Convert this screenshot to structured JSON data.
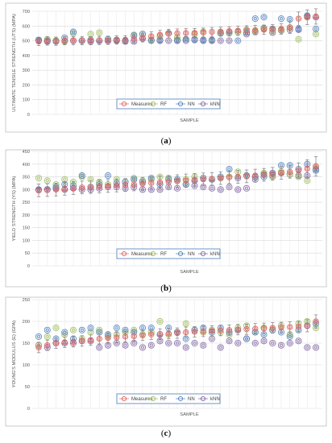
{
  "chart_data": [
    {
      "type": "scatter",
      "panel": "(a)",
      "caption_letter": "a",
      "ylabel": "ULTIMATE TENSILE STRENGTH (UTS) (MPA)",
      "xlabel": "SAMPLE",
      "ylim": [
        0,
        700
      ],
      "yticks": [
        0,
        100,
        200,
        300,
        400,
        500,
        600,
        700
      ],
      "grid": true,
      "legend_position": "bottom-center",
      "legend": [
        "Measures",
        "RF",
        "NN",
        "kNN"
      ],
      "colors": {
        "Measures": "#e0605e",
        "RF": "#9bbb59",
        "NN": "#4f81bd",
        "kNN": "#8064a2"
      },
      "x": [
        1,
        2,
        3,
        4,
        5,
        6,
        7,
        8,
        9,
        10,
        11,
        12,
        13,
        14,
        15,
        16,
        17,
        18,
        19,
        20,
        21,
        22,
        23,
        24,
        25,
        26,
        27,
        28,
        29,
        30,
        31,
        32,
        33
      ],
      "series": [
        {
          "name": "Measures",
          "values": [
            495,
            498,
            497,
            500,
            500,
            501,
            500,
            502,
            503,
            505,
            507,
            512,
            520,
            530,
            540,
            548,
            550,
            552,
            553,
            556,
            560,
            562,
            565,
            568,
            570,
            572,
            575,
            578,
            580,
            590,
            650,
            660,
            665
          ],
          "error": [
            28,
            28,
            28,
            28,
            28,
            28,
            28,
            28,
            28,
            28,
            28,
            28,
            28,
            30,
            30,
            30,
            30,
            30,
            30,
            30,
            30,
            30,
            30,
            32,
            32,
            32,
            32,
            32,
            35,
            40,
            45,
            50,
            52
          ]
        },
        {
          "name": "RF",
          "values": [
            505,
            510,
            500,
            495,
            550,
            500,
            545,
            555,
            510,
            505,
            500,
            540,
            545,
            505,
            530,
            550,
            520,
            510,
            545,
            560,
            505,
            555,
            550,
            560,
            575,
            565,
            580,
            570,
            575,
            590,
            510,
            660,
            545
          ]
        },
        {
          "name": "NN",
          "values": [
            505,
            500,
            495,
            520,
            560,
            500,
            505,
            500,
            510,
            505,
            500,
            535,
            545,
            500,
            505,
            550,
            500,
            510,
            505,
            500,
            505,
            550,
            560,
            500,
            555,
            650,
            660,
            580,
            650,
            645,
            580,
            670,
            580
          ]
        },
        {
          "name": "kNN",
          "values": [
            500,
            495,
            500,
            498,
            500,
            500,
            495,
            500,
            498,
            500,
            495,
            495,
            515,
            505,
            500,
            500,
            505,
            500,
            510,
            505,
            500,
            500,
            500,
            560,
            545,
            560,
            585,
            555,
            570,
            575,
            575,
            665,
            660
          ]
        }
      ]
    },
    {
      "type": "scatter",
      "panel": "(b)",
      "caption_letter": "b",
      "ylabel": "YIELD STRENGTH (YS) (MPA)",
      "xlabel": "SAMPLE",
      "ylim": [
        0,
        450
      ],
      "yticks": [
        0,
        50,
        100,
        150,
        200,
        250,
        300,
        350,
        400,
        450
      ],
      "grid": true,
      "legend_position": "bottom-center",
      "legend": [
        "Measures",
        "RF",
        "NN",
        "kNN"
      ],
      "colors": {
        "Measures": "#e0605e",
        "RF": "#9bbb59",
        "NN": "#4f81bd",
        "kNN": "#8064a2"
      },
      "x": [
        1,
        2,
        3,
        4,
        5,
        6,
        7,
        8,
        9,
        10,
        11,
        12,
        13,
        14,
        15,
        16,
        17,
        18,
        19,
        20,
        21,
        22,
        23,
        24,
        25,
        26,
        27,
        28,
        29,
        30,
        31,
        32,
        33
      ],
      "series": [
        {
          "name": "Measures",
          "values": [
            297,
            298,
            300,
            303,
            306,
            308,
            310,
            312,
            314,
            316,
            318,
            320,
            323,
            326,
            328,
            330,
            333,
            336,
            338,
            340,
            342,
            345,
            348,
            350,
            352,
            355,
            358,
            362,
            366,
            370,
            375,
            382,
            392
          ],
          "error": [
            25,
            25,
            25,
            25,
            25,
            25,
            25,
            25,
            25,
            25,
            25,
            25,
            25,
            25,
            25,
            25,
            25,
            25,
            25,
            25,
            25,
            25,
            25,
            25,
            25,
            25,
            25,
            25,
            25,
            25,
            30,
            35,
            38
          ]
        },
        {
          "name": "RF",
          "values": [
            345,
            335,
            320,
            340,
            330,
            350,
            340,
            330,
            320,
            340,
            330,
            345,
            335,
            340,
            350,
            345,
            335,
            340,
            350,
            345,
            340,
            345,
            350,
            370,
            355,
            350,
            365,
            350,
            370,
            360,
            350,
            335,
            390
          ]
        },
        {
          "name": "NN",
          "values": [
            300,
            300,
            310,
            320,
            315,
            355,
            310,
            320,
            355,
            325,
            330,
            340,
            330,
            345,
            320,
            340,
            340,
            320,
            335,
            345,
            340,
            350,
            380,
            345,
            355,
            350,
            350,
            365,
            395,
            395,
            380,
            400,
            375
          ]
        },
        {
          "name": "kNN",
          "values": [
            298,
            300,
            305,
            300,
            305,
            300,
            300,
            305,
            310,
            310,
            305,
            310,
            300,
            300,
            300,
            310,
            305,
            320,
            315,
            310,
            305,
            300,
            310,
            300,
            305,
            340,
            360,
            355,
            365,
            360,
            355,
            355,
            380
          ]
        }
      ]
    },
    {
      "type": "scatter",
      "panel": "(c)",
      "caption_letter": "c",
      "ylabel": "YOUNG'S MODULUS (E) (GPA)",
      "xlabel": "SAMPLE",
      "ylim": [
        0,
        250
      ],
      "yticks": [
        0,
        50,
        100,
        150,
        200,
        250
      ],
      "grid": true,
      "legend_position": "bottom-center",
      "legend": [
        "Measures",
        "RF",
        "NN",
        "kNN"
      ],
      "colors": {
        "Measures": "#e0605e",
        "RF": "#9bbb59",
        "NN": "#4f81bd",
        "kNN": "#8064a2"
      },
      "x": [
        1,
        2,
        3,
        4,
        5,
        6,
        7,
        8,
        9,
        10,
        11,
        12,
        13,
        14,
        15,
        16,
        17,
        18,
        19,
        20,
        21,
        22,
        23,
        24,
        25,
        26,
        27,
        28,
        29,
        30,
        31,
        32,
        33
      ],
      "series": [
        {
          "name": "Measures",
          "values": [
            140,
            145,
            150,
            152,
            153,
            155,
            157,
            160,
            162,
            163,
            165,
            166,
            168,
            170,
            171,
            172,
            173,
            175,
            176,
            177,
            178,
            179,
            180,
            181,
            182,
            183,
            184,
            185,
            186,
            187,
            188,
            190,
            200
          ],
          "error": [
            12,
            12,
            12,
            12,
            12,
            12,
            12,
            12,
            12,
            12,
            12,
            12,
            12,
            12,
            12,
            12,
            12,
            12,
            12,
            12,
            12,
            12,
            12,
            12,
            12,
            12,
            12,
            12,
            12,
            12,
            12,
            14,
            15
          ]
        },
        {
          "name": "RF",
          "values": [
            145,
            165,
            185,
            170,
            180,
            160,
            175,
            180,
            165,
            170,
            175,
            180,
            170,
            175,
            200,
            170,
            175,
            195,
            180,
            175,
            180,
            175,
            170,
            185,
            190,
            175,
            185,
            180,
            190,
            170,
            195,
            200,
            185
          ]
        },
        {
          "name": "NN",
          "values": [
            165,
            180,
            160,
            175,
            160,
            180,
            185,
            175,
            170,
            185,
            180,
            175,
            185,
            185,
            170,
            185,
            175,
            160,
            180,
            185,
            175,
            185,
            175,
            180,
            160,
            175,
            170,
            180,
            175,
            165,
            180,
            190,
            195
          ]
        },
        {
          "name": "kNN",
          "values": [
            145,
            140,
            150,
            150,
            150,
            155,
            155,
            140,
            145,
            150,
            145,
            150,
            140,
            145,
            155,
            150,
            150,
            140,
            150,
            145,
            160,
            140,
            155,
            150,
            160,
            150,
            155,
            150,
            145,
            150,
            155,
            140,
            140
          ]
        }
      ]
    }
  ]
}
